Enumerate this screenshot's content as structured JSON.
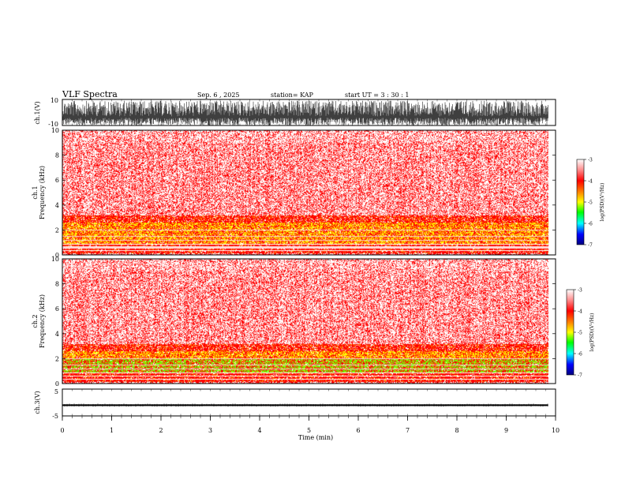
{
  "header": {
    "title": "VLF Spectra",
    "date": "Sep. 6  , 2025",
    "station": "station= KAP",
    "start_time": "start  UT =   3 : 30 : 1"
  },
  "colors": {
    "axis": "#000000",
    "spectrogram_bg": "#ffffff",
    "red": "#ff0000",
    "orange": "#ff8000",
    "yellow": "#ffff00",
    "green": "#00ff00",
    "cyan": "#00ffff",
    "blue": "#0000ff",
    "navy": "#00008b"
  },
  "chart_data": [
    {
      "id": "ch1-waveform",
      "type": "area",
      "ylabel": "ch.1(V)",
      "ylim": [
        -10,
        10
      ],
      "yticks": [
        "10",
        "-10"
      ],
      "xlim": [
        0,
        10
      ],
      "description_values": {
        "typical_min": -10,
        "typical_max": 9
      }
    },
    {
      "id": "ch1-spectrogram",
      "type": "heatmap",
      "ylabel": "ch.1\nFrequency (kHz)",
      "ylim": [
        0,
        10
      ],
      "yticks": [
        "0",
        "2",
        "4",
        "6",
        "8",
        "10"
      ],
      "xlim": [
        0,
        10
      ],
      "data_end_min": 9.85,
      "colorbar": {
        "label": "log(PSD)(V²/Hz)",
        "range": [
          -7,
          -3
        ],
        "ticks": [
          "-3",
          "-4",
          "-5",
          "-6",
          "-7"
        ]
      }
    },
    {
      "id": "ch2-spectrogram",
      "type": "heatmap",
      "ylabel": "ch.2\nFrequency (kHz)",
      "ylim": [
        0,
        10
      ],
      "yticks": [
        "0",
        "2",
        "4",
        "6",
        "8",
        "10"
      ],
      "xlim": [
        0,
        10
      ],
      "data_end_min": 9.85,
      "colorbar": {
        "label": "log(PSD)(V²/Hz)",
        "range": [
          -7,
          -3
        ],
        "ticks": [
          "-3",
          "-4",
          "-5",
          "-6",
          "-7"
        ]
      }
    },
    {
      "id": "ch3-waveform",
      "type": "line",
      "ylabel": "ch.3(V)",
      "ylim": [
        -5,
        5
      ],
      "yticks": [
        "5",
        "-5"
      ],
      "xlim": [
        0,
        10
      ],
      "xlabel": "Time  (min)",
      "xticks": [
        "0",
        "1",
        "2",
        "3",
        "4",
        "5",
        "6",
        "7",
        "8",
        "9",
        "10"
      ],
      "band": [
        -1.3,
        -0.7
      ]
    }
  ],
  "labels": {
    "ch1_label": "ch.1(V)",
    "ch1_spec_label_top": "ch.1",
    "ch1_spec_label": "Frequency  (kHz)",
    "ch2_spec_label_top": "ch.2",
    "ch2_spec_label": "Frequency  (kHz)",
    "ch3_label": "ch.3(V)",
    "xlabel": "Time  (min)",
    "colorbar_label": "log(PSD)(V²/Hz)"
  }
}
